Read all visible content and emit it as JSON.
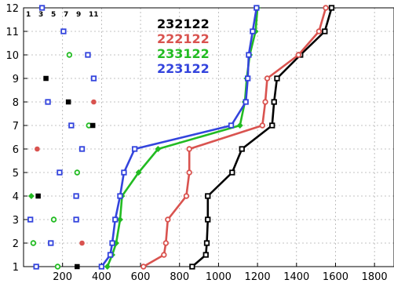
{
  "chart_data": {
    "type": "line",
    "xlim": [
      0,
      1900
    ],
    "ylim": [
      1,
      12
    ],
    "x_ticks": [
      "200",
      "400",
      "600",
      "800",
      "1000",
      "1200",
      "1400",
      "1600",
      "1800"
    ],
    "x_tick_values": [
      200,
      400,
      600,
      800,
      1000,
      1200,
      1400,
      1600,
      1800
    ],
    "y_ticks": [
      "1",
      "2",
      "3",
      "4",
      "5",
      "6",
      "7",
      "8",
      "9",
      "10",
      "11",
      "12"
    ],
    "y_tick_values": [
      1,
      2,
      3,
      4,
      5,
      6,
      7,
      8,
      9,
      10,
      11,
      12
    ],
    "top_ticks": [
      "1",
      "3",
      "5",
      "7",
      "9",
      "11"
    ],
    "grid": true,
    "legend_position": "top-center",
    "series": [
      {
        "name": "232122",
        "color": "#000000",
        "marker": "open-square",
        "x": [
          865,
          935,
          940,
          945,
          945,
          1070,
          1120,
          1275,
          1285,
          1300,
          1420,
          1545,
          1580
        ],
        "y": [
          1,
          1.5,
          2,
          3,
          4,
          5,
          6,
          7,
          8,
          9,
          10,
          11,
          12
        ]
      },
      {
        "name": "222122",
        "color": "#d9534f",
        "marker": "open-circle",
        "x": [
          615,
          720,
          730,
          740,
          835,
          850,
          850,
          1225,
          1240,
          1250,
          1410,
          1515,
          1550
        ],
        "y": [
          1,
          1.5,
          2,
          3,
          4,
          5,
          6,
          7,
          8,
          9,
          10,
          11,
          12
        ]
      },
      {
        "name": "233122",
        "color": "#22bb22",
        "marker": "filled-diamond",
        "x": [
          430,
          455,
          475,
          495,
          505,
          590,
          690,
          1110,
          1135,
          1145,
          1160,
          1190,
          1200
        ],
        "y": [
          1,
          1.5,
          2,
          3,
          4,
          5,
          6,
          7,
          8,
          9,
          10,
          11,
          12
        ]
      },
      {
        "name": "223122",
        "color": "#3344dd",
        "marker": "open-square",
        "x": [
          400,
          445,
          455,
          470,
          495,
          515,
          570,
          1065,
          1140,
          1150,
          1155,
          1175,
          1195
        ],
        "y": [
          1,
          1.5,
          2,
          3,
          4,
          5,
          6,
          7,
          8,
          9,
          10,
          11,
          12
        ]
      }
    ],
    "scatter_points": [
      {
        "color": "#3344dd",
        "marker": "open-square",
        "x": 65,
        "y": 1
      },
      {
        "color": "#22bb22",
        "marker": "open-circle",
        "x": 175,
        "y": 1
      },
      {
        "color": "#000000",
        "marker": "filled-square",
        "x": 275,
        "y": 1
      },
      {
        "color": "#22bb22",
        "marker": "open-circle",
        "x": 50,
        "y": 2
      },
      {
        "color": "#3344dd",
        "marker": "open-square",
        "x": 140,
        "y": 2
      },
      {
        "color": "#d9534f",
        "marker": "filled-circle",
        "x": 300,
        "y": 2
      },
      {
        "color": "#3344dd",
        "marker": "open-square",
        "x": 35,
        "y": 3
      },
      {
        "color": "#22bb22",
        "marker": "open-circle",
        "x": 155,
        "y": 3
      },
      {
        "color": "#3344dd",
        "marker": "open-square",
        "x": 270,
        "y": 3
      },
      {
        "color": "#22bb22",
        "marker": "filled-diamond",
        "x": 40,
        "y": 4
      },
      {
        "color": "#000000",
        "marker": "filled-square",
        "x": 75,
        "y": 4
      },
      {
        "color": "#3344dd",
        "marker": "open-square",
        "x": 270,
        "y": 4
      },
      {
        "color": "#3344dd",
        "marker": "open-square",
        "x": 185,
        "y": 5
      },
      {
        "color": "#22bb22",
        "marker": "open-circle",
        "x": 275,
        "y": 5
      },
      {
        "color": "#d9534f",
        "marker": "filled-circle",
        "x": 70,
        "y": 6
      },
      {
        "color": "#3344dd",
        "marker": "open-square",
        "x": 300,
        "y": 6
      },
      {
        "color": "#3344dd",
        "marker": "open-square",
        "x": 245,
        "y": 7
      },
      {
        "color": "#22bb22",
        "marker": "open-circle",
        "x": 335,
        "y": 7
      },
      {
        "color": "#000000",
        "marker": "filled-square",
        "x": 355,
        "y": 7
      },
      {
        "color": "#3344dd",
        "marker": "open-square",
        "x": 125,
        "y": 8
      },
      {
        "color": "#000000",
        "marker": "filled-square",
        "x": 230,
        "y": 8
      },
      {
        "color": "#d9534f",
        "marker": "filled-circle",
        "x": 360,
        "y": 8
      },
      {
        "color": "#000000",
        "marker": "filled-square",
        "x": 115,
        "y": 9
      },
      {
        "color": "#3344dd",
        "marker": "open-square",
        "x": 360,
        "y": 9
      },
      {
        "color": "#22bb22",
        "marker": "open-circle",
        "x": 235,
        "y": 10
      },
      {
        "color": "#3344dd",
        "marker": "open-square",
        "x": 330,
        "y": 10
      },
      {
        "color": "#3344dd",
        "marker": "open-square",
        "x": 205,
        "y": 11
      },
      {
        "color": "#3344dd",
        "marker": "open-square",
        "x": 95,
        "y": 12
      }
    ]
  }
}
